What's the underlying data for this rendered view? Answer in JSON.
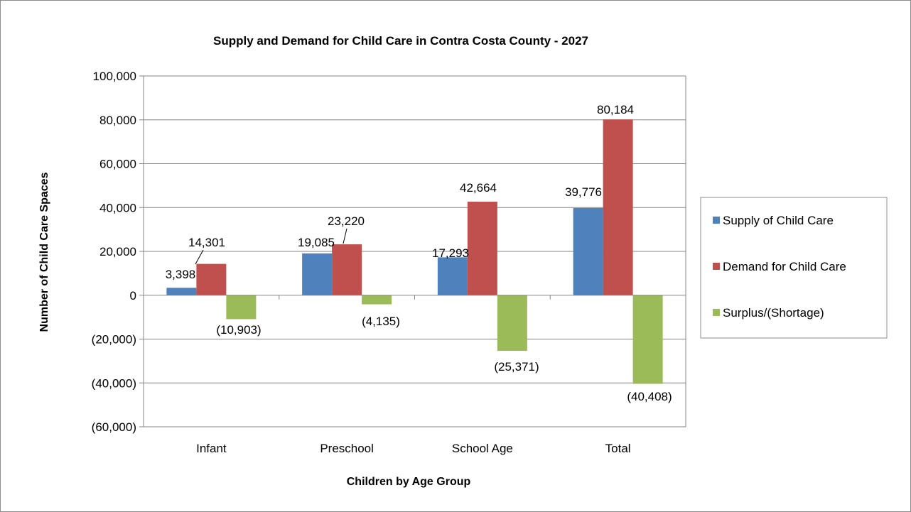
{
  "chart_data": {
    "type": "bar",
    "title": "Supply and Demand for Child Care in Contra Costa County - 2027",
    "xlabel": "Children by Age Group",
    "ylabel": "Number of Child Care Spaces",
    "categories": [
      "Infant",
      "Preschool",
      "School Age",
      "Total"
    ],
    "series": [
      {
        "name": "Supply of Child Care",
        "color": "#4F81BD",
        "values": [
          3398,
          19085,
          17293,
          39776
        ],
        "labels": [
          "3,398",
          "19,085",
          "17,293",
          "39,776"
        ]
      },
      {
        "name": "Demand for Child Care",
        "color": "#C0504D",
        "values": [
          14301,
          23220,
          42664,
          80184
        ],
        "labels": [
          "14,301",
          "23,220",
          "42,664",
          "80,184"
        ]
      },
      {
        "name": "Surplus/(Shortage)",
        "color": "#9BBB59",
        "values": [
          -10903,
          -4135,
          -25371,
          -40408
        ],
        "labels": [
          "(10,903)",
          "(4,135)",
          "(25,371)",
          "(40,408)"
        ]
      }
    ],
    "ylim": [
      -60000,
      100000
    ],
    "yticks": [
      -60000,
      -40000,
      -20000,
      0,
      20000,
      40000,
      60000,
      80000,
      100000
    ],
    "ytick_labels": [
      "(60,000)",
      "(40,000)",
      "(20,000)",
      "0",
      "20,000",
      "40,000",
      "60,000",
      "80,000",
      "100,000"
    ],
    "grid": true,
    "legend_position": "right"
  }
}
